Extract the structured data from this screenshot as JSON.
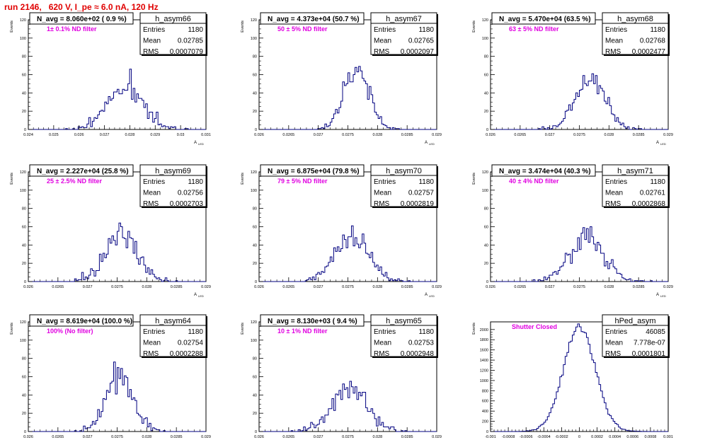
{
  "run_title": "run 2146,   620 V, I_pe ≈ 6.0 nA, 120 Hz",
  "y_axis_label": "Events",
  "x_axis_label": "A",
  "x_axis_label_sub": "LED",
  "colors": {
    "histogram": "#000080",
    "annotation": "#e000e0",
    "title": "#e00000"
  },
  "chart_data": [
    {
      "type": "histogram",
      "name": "h_asym66",
      "entries": "1180",
      "mean": "0.02785",
      "rms": "0.0007079",
      "navg": "N_avg = 8.060e+02 ( 0.9 %)",
      "filter": "1± 0.1% ND filter",
      "mu": 0.02785,
      "sigma": 0.0007079,
      "n": 1180,
      "bins": 100,
      "xlim": [
        0.024,
        0.031
      ],
      "ylim": [
        0,
        120
      ],
      "xticks": [
        "0.024",
        "0.025",
        "0.026",
        "0.027",
        "0.028",
        "0.029",
        "0.03",
        "0.031"
      ],
      "xtick_values": [
        0.024,
        0.025,
        0.026,
        0.027,
        0.028,
        0.029,
        0.03,
        0.031
      ],
      "yticks": [
        "0",
        "20",
        "40",
        "60",
        "80",
        "100",
        "120"
      ],
      "ytick_values": [
        0,
        20,
        40,
        60,
        80,
        100,
        120
      ]
    },
    {
      "type": "histogram",
      "name": "h_asym67",
      "entries": "1180",
      "mean": "0.02765",
      "rms": "0.0002097",
      "navg": "N_avg = 4.373e+04 (50.7 %)",
      "filter": "50 ± 5% ND filter",
      "mu": 0.02765,
      "sigma": 0.0002097,
      "n": 1180,
      "bins": 100,
      "xlim": [
        0.026,
        0.029
      ],
      "ylim": [
        0,
        120
      ],
      "xticks": [
        "0.026",
        "0.0265",
        "0.027",
        "0.0275",
        "0.028",
        "0.0285",
        "0.029"
      ],
      "xtick_values": [
        0.026,
        0.0265,
        0.027,
        0.0275,
        0.028,
        0.0285,
        0.029
      ],
      "yticks": [
        "0",
        "20",
        "40",
        "60",
        "80",
        "100",
        "120"
      ],
      "ytick_values": [
        0,
        20,
        40,
        60,
        80,
        100,
        120
      ]
    },
    {
      "type": "histogram",
      "name": "h_asym68",
      "entries": "1180",
      "mean": "0.02768",
      "rms": "0.0002477",
      "navg": "N_avg = 5.470e+04 (63.5 %)",
      "filter": "63 ± 5% ND filter",
      "mu": 0.02768,
      "sigma": 0.0002477,
      "n": 1180,
      "bins": 100,
      "xlim": [
        0.026,
        0.029
      ],
      "ylim": [
        0,
        120
      ],
      "xticks": [
        "0.026",
        "0.0265",
        "0.027",
        "0.0275",
        "0.028",
        "0.0285",
        "0.029"
      ],
      "xtick_values": [
        0.026,
        0.0265,
        0.027,
        0.0275,
        0.028,
        0.0285,
        0.029
      ],
      "yticks": [
        "0",
        "20",
        "40",
        "60",
        "80",
        "100",
        "120"
      ],
      "ytick_values": [
        0,
        20,
        40,
        60,
        80,
        100,
        120
      ]
    },
    {
      "type": "histogram",
      "name": "h_asym69",
      "entries": "1180",
      "mean": "0.02756",
      "rms": "0.0002703",
      "navg": "N_avg = 2.227e+04 (25.8 %)",
      "filter": "25 ± 2.5% ND filter",
      "mu": 0.02756,
      "sigma": 0.0002703,
      "n": 1180,
      "bins": 100,
      "xlim": [
        0.026,
        0.029
      ],
      "ylim": [
        0,
        120
      ],
      "xticks": [
        "0.026",
        "0.0265",
        "0.027",
        "0.0275",
        "0.028",
        "0.0285",
        "0.029"
      ],
      "xtick_values": [
        0.026,
        0.0265,
        0.027,
        0.0275,
        0.028,
        0.0285,
        0.029
      ],
      "yticks": [
        "0",
        "20",
        "40",
        "60",
        "80",
        "100",
        "120"
      ],
      "ytick_values": [
        0,
        20,
        40,
        60,
        80,
        100,
        120
      ]
    },
    {
      "type": "histogram",
      "name": "h_asym70",
      "entries": "1180",
      "mean": "0.02757",
      "rms": "0.0002819",
      "navg": "N_avg = 6.875e+04 (79.8 %)",
      "filter": "79 ± 5% ND filter",
      "mu": 0.02757,
      "sigma": 0.0002819,
      "n": 1180,
      "bins": 100,
      "xlim": [
        0.026,
        0.029
      ],
      "ylim": [
        0,
        120
      ],
      "xticks": [
        "0.026",
        "0.0265",
        "0.027",
        "0.0275",
        "0.028",
        "0.0285",
        "0.029"
      ],
      "xtick_values": [
        0.026,
        0.0265,
        0.027,
        0.0275,
        0.028,
        0.0285,
        0.029
      ],
      "yticks": [
        "0",
        "20",
        "40",
        "60",
        "80",
        "100",
        "120"
      ],
      "ytick_values": [
        0,
        20,
        40,
        60,
        80,
        100,
        120
      ]
    },
    {
      "type": "histogram",
      "name": "h_asym71",
      "entries": "1180",
      "mean": "0.02761",
      "rms": "0.0002868",
      "navg": "N_avg = 3.474e+04 (40.3 %)",
      "filter": "40 ± 4% ND filter",
      "mu": 0.02761,
      "sigma": 0.0002868,
      "n": 1180,
      "bins": 100,
      "xlim": [
        0.026,
        0.029
      ],
      "ylim": [
        0,
        120
      ],
      "xticks": [
        "0.026",
        "0.0265",
        "0.027",
        "0.0275",
        "0.028",
        "0.0285",
        "0.029"
      ],
      "xtick_values": [
        0.026,
        0.0265,
        0.027,
        0.0275,
        0.028,
        0.0285,
        0.029
      ],
      "yticks": [
        "0",
        "20",
        "40",
        "60",
        "80",
        "100",
        "120"
      ],
      "ytick_values": [
        0,
        20,
        40,
        60,
        80,
        100,
        120
      ]
    },
    {
      "type": "histogram",
      "name": "h_asym64",
      "entries": "1180",
      "mean": "0.02754",
      "rms": "0.0002288",
      "navg": "N_avg = 8.619e+04 (100.0 %)",
      "filter": "100% (No filter)",
      "mu": 0.02754,
      "sigma": 0.0002288,
      "n": 1180,
      "bins": 100,
      "xlim": [
        0.026,
        0.029
      ],
      "ylim": [
        0,
        120
      ],
      "xticks": [
        "0.026",
        "0.0265",
        "0.027",
        "0.0275",
        "0.028",
        "0.0285",
        "0.029"
      ],
      "xtick_values": [
        0.026,
        0.0265,
        0.027,
        0.0275,
        0.028,
        0.0285,
        0.029
      ],
      "yticks": [
        "0",
        "20",
        "40",
        "60",
        "80",
        "100",
        "120"
      ],
      "ytick_values": [
        0,
        20,
        40,
        60,
        80,
        100,
        120
      ]
    },
    {
      "type": "histogram",
      "name": "h_asym65",
      "entries": "1180",
      "mean": "0.02753",
      "rms": "0.0002948",
      "navg": "N_avg = 8.130e+03 ( 9.4 %)",
      "filter": "10 ± 1% ND filter",
      "mu": 0.02753,
      "sigma": 0.0002948,
      "n": 1180,
      "bins": 100,
      "xlim": [
        0.026,
        0.029
      ],
      "ylim": [
        0,
        120
      ],
      "xticks": [
        "0.026",
        "0.0265",
        "0.027",
        "0.0275",
        "0.028",
        "0.0285",
        "0.029"
      ],
      "xtick_values": [
        0.026,
        0.0265,
        0.027,
        0.0275,
        0.028,
        0.0285,
        0.029
      ],
      "yticks": [
        "0",
        "20",
        "40",
        "60",
        "80",
        "100",
        "120"
      ],
      "ytick_values": [
        0,
        20,
        40,
        60,
        80,
        100,
        120
      ]
    },
    {
      "type": "histogram",
      "name": "hPed_asym",
      "entries": "46085",
      "mean": "7.778e-07",
      "rms": "0.0001801",
      "navg": "",
      "filter": "Shutter Closed",
      "mu": 7.78e-07,
      "sigma": 0.0001801,
      "n": 46085,
      "bins": 100,
      "xlim": [
        -0.001,
        0.001
      ],
      "ylim": [
        0,
        2150
      ],
      "xticks": [
        "-0.001",
        "-0.0008",
        "-0.0006",
        "-0.0004",
        "-0.0002",
        "0",
        "0.0002",
        "0.0004",
        "0.0006",
        "0.0008",
        "0.001"
      ],
      "xtick_values": [
        -0.001,
        -0.0008,
        -0.0006,
        -0.0004,
        -0.0002,
        0,
        0.0002,
        0.0004,
        0.0006,
        0.0008,
        0.001
      ],
      "yticks": [
        "0",
        "200",
        "400",
        "600",
        "800",
        "1000",
        "1200",
        "1400",
        "1600",
        "1800",
        "2000"
      ],
      "ytick_values": [
        0,
        200,
        400,
        600,
        800,
        1000,
        1200,
        1400,
        1600,
        1800,
        2000
      ]
    }
  ]
}
